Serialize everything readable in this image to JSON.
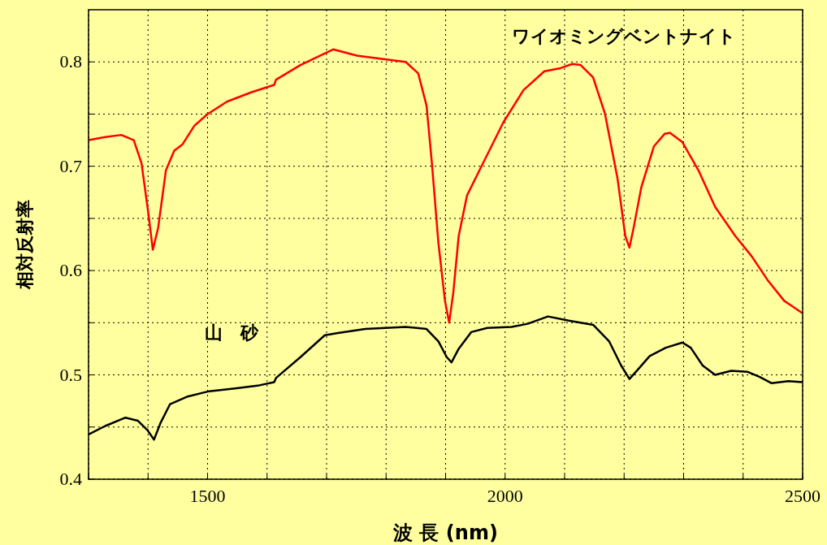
{
  "chart_data": {
    "type": "line",
    "xlabel": "波 長 (nm)",
    "ylabel": "相対反射率",
    "xlim": [
      1300,
      2500
    ],
    "ylim": [
      0.4,
      0.85
    ],
    "xticks": [
      {
        "value": 1300,
        "label": null
      },
      {
        "value": 1400,
        "label": null
      },
      1500,
      {
        "value": 1600,
        "label": null
      },
      {
        "value": 1700,
        "label": null
      },
      {
        "value": 1800,
        "label": null
      },
      {
        "value": 1900,
        "label": null
      },
      2000,
      {
        "value": 2100,
        "label": null
      },
      {
        "value": 2200,
        "label": null
      },
      {
        "value": 2300,
        "label": null
      },
      {
        "value": 2400,
        "label": null
      },
      2500
    ],
    "yticks": [
      0.4,
      {
        "value": 0.45,
        "label": null
      },
      0.5,
      {
        "value": 0.55,
        "label": null
      },
      0.6,
      {
        "value": 0.65,
        "label": null
      },
      0.7,
      {
        "value": 0.75,
        "label": null
      },
      0.8
    ],
    "grid": true,
    "line_style": "solid",
    "marker": "none",
    "series": [
      {
        "name": "ワイオミングベントナイト",
        "color": "#ff0000",
        "x": [
          1300,
          1328,
          1355,
          1376,
          1389,
          1400,
          1408,
          1417,
          1430,
          1444,
          1458,
          1478,
          1500,
          1533,
          1574,
          1612,
          1615,
          1656,
          1711,
          1751,
          1806,
          1833,
          1854,
          1868,
          1877,
          1888,
          1899,
          1906,
          1913,
          1922,
          1936,
          1963,
          1997,
          2031,
          2066,
          2093,
          2113,
          2127,
          2148,
          2168,
          2189,
          2202,
          2209,
          2216,
          2229,
          2250,
          2268,
          2277,
          2298,
          2325,
          2353,
          2387,
          2414,
          2441,
          2469,
          2482,
          2500
        ],
        "values": [
          0.725,
          0.728,
          0.73,
          0.725,
          0.703,
          0.657,
          0.62,
          0.641,
          0.696,
          0.715,
          0.721,
          0.739,
          0.75,
          0.762,
          0.771,
          0.778,
          0.783,
          0.797,
          0.812,
          0.806,
          0.802,
          0.8,
          0.789,
          0.758,
          0.703,
          0.626,
          0.571,
          0.55,
          0.579,
          0.633,
          0.672,
          0.703,
          0.742,
          0.773,
          0.791,
          0.794,
          0.798,
          0.797,
          0.785,
          0.75,
          0.688,
          0.633,
          0.622,
          0.641,
          0.68,
          0.719,
          0.731,
          0.732,
          0.723,
          0.696,
          0.661,
          0.633,
          0.614,
          0.591,
          0.571,
          0.566,
          0.559
        ]
      },
      {
        "name": "山　砂",
        "color": "#000000",
        "x": [
          1300,
          1328,
          1362,
          1383,
          1399,
          1410,
          1421,
          1437,
          1465,
          1500,
          1546,
          1587,
          1612,
          1615,
          1656,
          1697,
          1717,
          1765,
          1833,
          1868,
          1888,
          1902,
          1910,
          1922,
          1943,
          1970,
          2011,
          2038,
          2072,
          2107,
          2148,
          2175,
          2195,
          2209,
          2223,
          2243,
          2270,
          2298,
          2312,
          2332,
          2353,
          2380,
          2407,
          2428,
          2448,
          2476,
          2500
        ],
        "values": [
          0.443,
          0.451,
          0.459,
          0.456,
          0.447,
          0.438,
          0.454,
          0.472,
          0.479,
          0.484,
          0.487,
          0.49,
          0.493,
          0.497,
          0.517,
          0.538,
          0.54,
          0.544,
          0.546,
          0.544,
          0.532,
          0.517,
          0.512,
          0.525,
          0.541,
          0.545,
          0.546,
          0.549,
          0.556,
          0.552,
          0.548,
          0.532,
          0.509,
          0.496,
          0.505,
          0.518,
          0.526,
          0.531,
          0.526,
          0.509,
          0.5,
          0.504,
          0.503,
          0.498,
          0.492,
          0.494,
          0.493
        ]
      }
    ]
  }
}
